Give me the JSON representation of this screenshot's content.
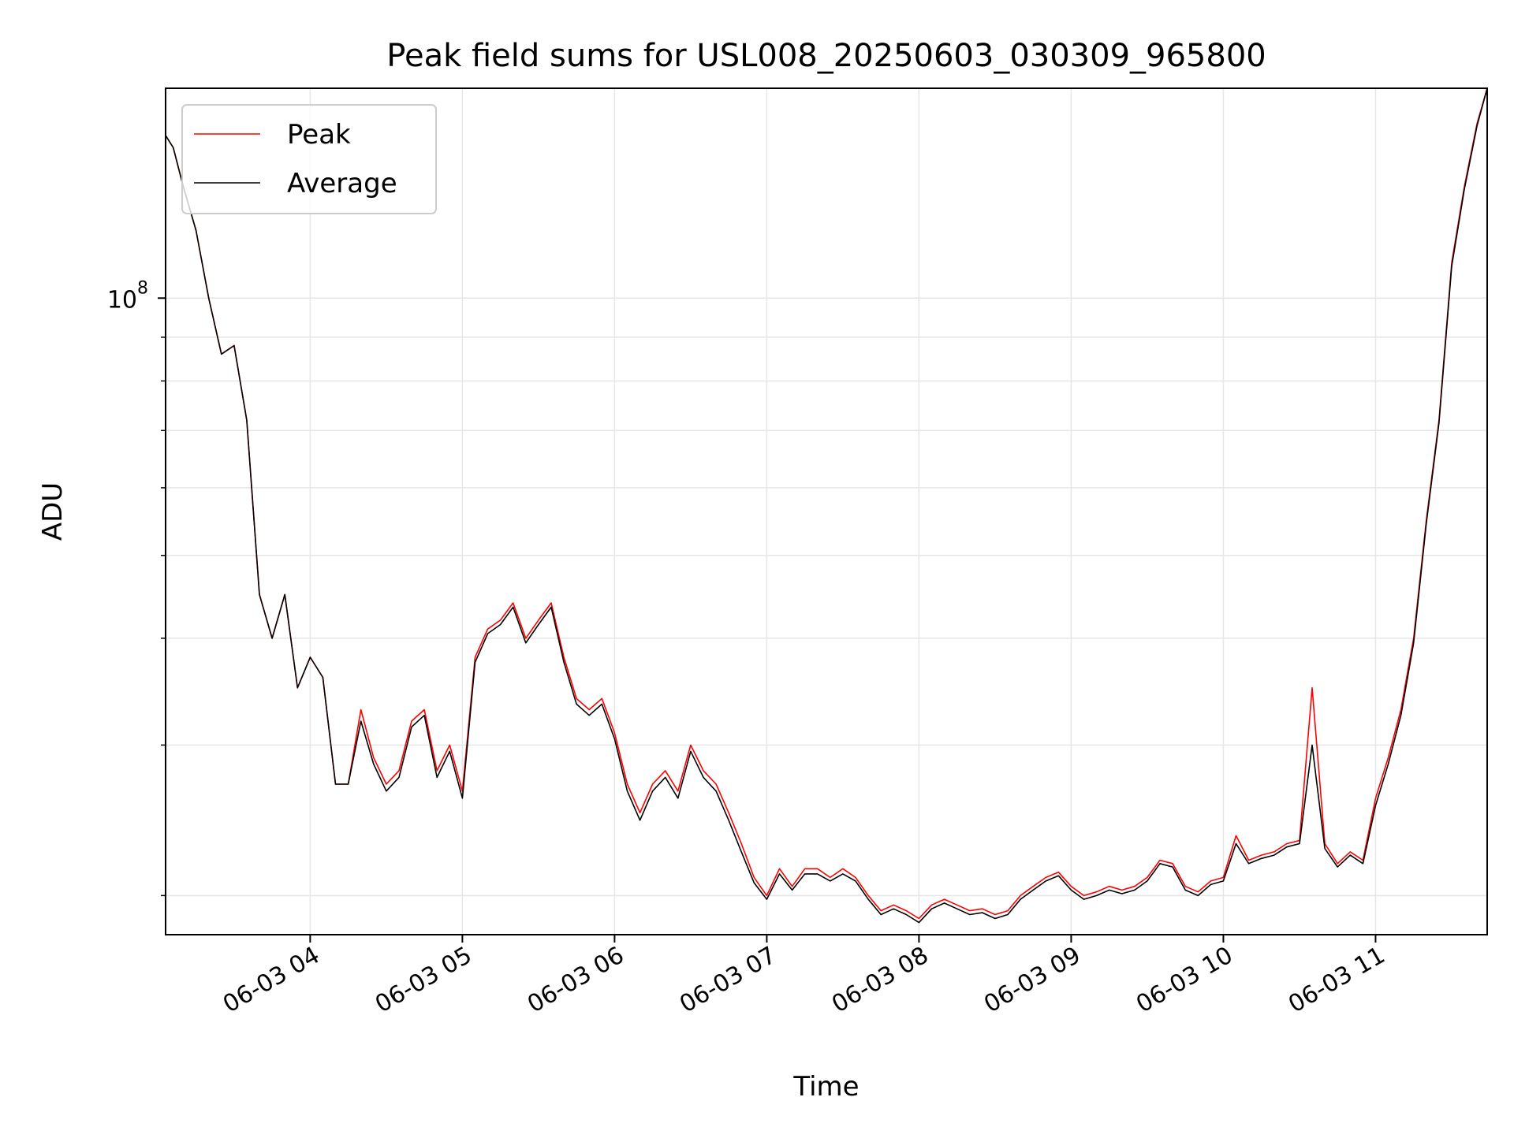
{
  "chart_data": {
    "type": "line",
    "title": "Peak field sums for USL008_20250603_030309_965800",
    "xlabel": "Time",
    "ylabel": "ADU",
    "y_scale": "log",
    "ylim": [
      18000000,
      176000000
    ],
    "xlim": [
      "2025-06-03 03:03",
      "2025-06-03 11:44"
    ],
    "grid": true,
    "legend_placement": "top-left",
    "x_tick_labels": [
      {
        "label": "06-03 04",
        "x": "2025-06-03 04:00"
      },
      {
        "label": "06-03 05",
        "x": "2025-06-03 05:00"
      },
      {
        "label": "06-03 06",
        "x": "2025-06-03 06:00"
      },
      {
        "label": "06-03 07",
        "x": "2025-06-03 07:00"
      },
      {
        "label": "06-03 08",
        "x": "2025-06-03 08:00"
      },
      {
        "label": "06-03 09",
        "x": "2025-06-03 09:00"
      },
      {
        "label": "06-03 10",
        "x": "2025-06-03 10:00"
      },
      {
        "label": "06-03 11",
        "x": "2025-06-03 11:00"
      }
    ],
    "y_tick_labels": [
      {
        "base": "10",
        "exponent": "8",
        "value": 100000000
      }
    ],
    "x": [
      "2025-06-03 03:03",
      "2025-06-03 03:06",
      "2025-06-03 03:10",
      "2025-06-03 03:15",
      "2025-06-03 03:20",
      "2025-06-03 03:25",
      "2025-06-03 03:30",
      "2025-06-03 03:35",
      "2025-06-03 03:40",
      "2025-06-03 03:45",
      "2025-06-03 03:50",
      "2025-06-03 03:55",
      "2025-06-03 04:00",
      "2025-06-03 04:05",
      "2025-06-03 04:10",
      "2025-06-03 04:15",
      "2025-06-03 04:20",
      "2025-06-03 04:25",
      "2025-06-03 04:30",
      "2025-06-03 04:35",
      "2025-06-03 04:40",
      "2025-06-03 04:45",
      "2025-06-03 04:50",
      "2025-06-03 04:55",
      "2025-06-03 05:00",
      "2025-06-03 05:05",
      "2025-06-03 05:10",
      "2025-06-03 05:15",
      "2025-06-03 05:20",
      "2025-06-03 05:25",
      "2025-06-03 05:30",
      "2025-06-03 05:35",
      "2025-06-03 05:40",
      "2025-06-03 05:45",
      "2025-06-03 05:50",
      "2025-06-03 05:55",
      "2025-06-03 06:00",
      "2025-06-03 06:05",
      "2025-06-03 06:10",
      "2025-06-03 06:15",
      "2025-06-03 06:20",
      "2025-06-03 06:25",
      "2025-06-03 06:30",
      "2025-06-03 06:35",
      "2025-06-03 06:40",
      "2025-06-03 06:45",
      "2025-06-03 06:50",
      "2025-06-03 06:55",
      "2025-06-03 07:00",
      "2025-06-03 07:05",
      "2025-06-03 07:10",
      "2025-06-03 07:15",
      "2025-06-03 07:20",
      "2025-06-03 07:25",
      "2025-06-03 07:30",
      "2025-06-03 07:35",
      "2025-06-03 07:40",
      "2025-06-03 07:45",
      "2025-06-03 07:50",
      "2025-06-03 07:55",
      "2025-06-03 08:00",
      "2025-06-03 08:05",
      "2025-06-03 08:10",
      "2025-06-03 08:15",
      "2025-06-03 08:20",
      "2025-06-03 08:25",
      "2025-06-03 08:30",
      "2025-06-03 08:35",
      "2025-06-03 08:40",
      "2025-06-03 08:45",
      "2025-06-03 08:50",
      "2025-06-03 08:55",
      "2025-06-03 09:00",
      "2025-06-03 09:05",
      "2025-06-03 09:10",
      "2025-06-03 09:15",
      "2025-06-03 09:20",
      "2025-06-03 09:25",
      "2025-06-03 09:30",
      "2025-06-03 09:35",
      "2025-06-03 09:40",
      "2025-06-03 09:45",
      "2025-06-03 09:50",
      "2025-06-03 09:55",
      "2025-06-03 10:00",
      "2025-06-03 10:05",
      "2025-06-03 10:10",
      "2025-06-03 10:15",
      "2025-06-03 10:20",
      "2025-06-03 10:25",
      "2025-06-03 10:30",
      "2025-06-03 10:35",
      "2025-06-03 10:40",
      "2025-06-03 10:45",
      "2025-06-03 10:50",
      "2025-06-03 10:55",
      "2025-06-03 11:00",
      "2025-06-03 11:05",
      "2025-06-03 11:10",
      "2025-06-03 11:15",
      "2025-06-03 11:20",
      "2025-06-03 11:25",
      "2025-06-03 11:30",
      "2025-06-03 11:35",
      "2025-06-03 11:40",
      "2025-06-03 11:44"
    ],
    "series": [
      {
        "name": "Peak",
        "color": "#ff0000",
        "values": [
          155000000,
          150000000,
          135000000,
          120000000,
          100000000,
          86000000,
          88000000,
          72000000,
          45000000,
          40000000,
          45000000,
          35000000,
          38000000,
          36000000,
          27000000,
          27000000,
          33000000,
          29000000,
          27000000,
          28000000,
          32000000,
          33000000,
          28000000,
          30000000,
          26500000,
          38000000,
          41000000,
          42000000,
          44000000,
          40000000,
          42000000,
          44000000,
          38000000,
          34000000,
          33000000,
          34000000,
          31000000,
          27000000,
          25000000,
          27000000,
          28000000,
          26500000,
          30000000,
          28000000,
          27000000,
          25000000,
          23000000,
          21000000,
          20000000,
          21500000,
          20500000,
          21500000,
          21500000,
          21000000,
          21500000,
          21000000,
          20000000,
          19200000,
          19500000,
          19200000,
          18800000,
          19500000,
          19800000,
          19500000,
          19200000,
          19300000,
          19000000,
          19200000,
          20000000,
          20500000,
          21000000,
          21300000,
          20500000,
          20000000,
          20200000,
          20500000,
          20300000,
          20500000,
          21000000,
          22000000,
          21800000,
          20500000,
          20200000,
          20800000,
          21000000,
          23500000,
          22000000,
          22300000,
          22500000,
          23000000,
          23200000,
          35000000,
          23000000,
          21800000,
          22500000,
          22000000,
          26000000,
          29000000,
          33000000,
          40000000,
          55000000,
          72000000,
          110000000,
          135000000,
          160000000,
          176000000
        ]
      },
      {
        "name": "Average",
        "color": "#000000",
        "values": [
          155000000,
          150000000,
          135000000,
          120000000,
          100000000,
          86000000,
          88000000,
          72000000,
          45000000,
          40000000,
          45000000,
          35000000,
          38000000,
          36000000,
          27000000,
          27000000,
          32000000,
          28500000,
          26500000,
          27500000,
          31500000,
          32500000,
          27500000,
          29500000,
          26000000,
          37500000,
          40500000,
          41500000,
          43500000,
          39500000,
          41500000,
          43500000,
          37500000,
          33500000,
          32500000,
          33500000,
          30500000,
          26500000,
          24500000,
          26500000,
          27500000,
          26000000,
          29500000,
          27500000,
          26500000,
          24500000,
          22500000,
          20700000,
          19800000,
          21200000,
          20300000,
          21200000,
          21200000,
          20800000,
          21200000,
          20800000,
          19800000,
          19000000,
          19300000,
          19000000,
          18600000,
          19300000,
          19600000,
          19300000,
          19000000,
          19100000,
          18800000,
          19000000,
          19800000,
          20300000,
          20800000,
          21100000,
          20300000,
          19800000,
          20000000,
          20300000,
          20100000,
          20300000,
          20800000,
          21800000,
          21600000,
          20300000,
          20000000,
          20600000,
          20800000,
          23000000,
          21800000,
          22100000,
          22300000,
          22800000,
          23000000,
          30000000,
          22700000,
          21600000,
          22300000,
          21800000,
          25500000,
          28500000,
          32500000,
          39500000,
          54500000,
          71500000,
          109000000,
          134000000,
          159000000,
          176000000
        ]
      }
    ]
  }
}
